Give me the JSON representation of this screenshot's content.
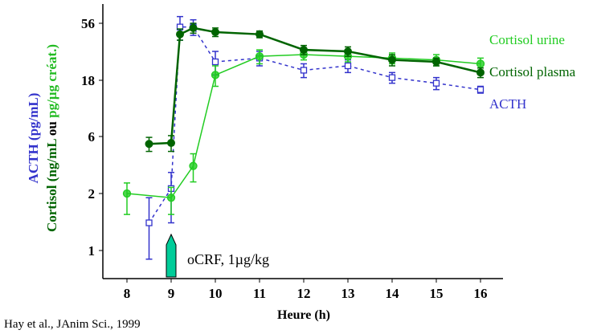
{
  "chart_data": {
    "type": "line",
    "title": "",
    "xlabel": "Heure (h)",
    "ylabel_acth": "ACTH (pg/mL)",
    "ylabel_cortisol_parts": [
      {
        "text": "Cortisol (ng/mL ",
        "color": "#006400"
      },
      {
        "text": "ou ",
        "color": "#000000"
      },
      {
        "text": "pg/µg créat.)",
        "color": "#22bb22"
      }
    ],
    "y_scale": "log (ticks equally spaced)",
    "y_ticks": [
      1,
      2,
      6,
      18,
      56
    ],
    "x_ticks": [
      8,
      9,
      10,
      11,
      12,
      13,
      14,
      15,
      16
    ],
    "xlim": [
      7.45,
      16.5
    ],
    "grid": false,
    "legend_placement": "right, inline labels",
    "series": [
      {
        "name": "Cortisol urine",
        "color": "#22cc22",
        "line": "solid",
        "marker": "circle-open",
        "x": [
          8,
          9,
          9.5,
          10,
          11,
          12,
          13,
          14,
          15,
          16
        ],
        "y": [
          2.0,
          1.9,
          3.4,
          20,
          29,
          30,
          29,
          28,
          27,
          25
        ],
        "err": [
          0.45,
          0.35,
          0.9,
          4,
          4,
          3,
          3,
          3,
          3,
          3
        ]
      },
      {
        "name": "Cortisol plasma",
        "color": "#006400",
        "line": "solid-thick",
        "marker": "circle-filled",
        "x": [
          8.5,
          9,
          9.2,
          9.5,
          10,
          11,
          12,
          13,
          14,
          15,
          16
        ],
        "y": [
          5.2,
          5.3,
          45,
          51,
          47,
          45,
          33,
          32,
          27,
          26,
          21
        ],
        "err": [
          0.7,
          0.8,
          5,
          5,
          4,
          3,
          3,
          3,
          3,
          2,
          2
        ]
      },
      {
        "name": "ACTH",
        "color": "#3333cc",
        "line": "dashed",
        "marker": "square-open",
        "x": [
          8.5,
          9,
          9.2,
          9.5,
          10,
          11,
          12,
          13,
          14,
          15,
          16
        ],
        "y": [
          1.4,
          2.2,
          52,
          52,
          26,
          28,
          22,
          24,
          19,
          17,
          15
        ],
        "err": [
          0.5,
          0.8,
          12,
          8,
          6,
          4,
          3,
          3,
          2,
          2,
          1
        ]
      }
    ],
    "annotations": [
      {
        "text": "oCRF, 1µg/kg",
        "x": 9,
        "type": "arrow-up",
        "color": "#00cc99"
      }
    ],
    "source_note": "Hay et al., JAnim Sci., 1999"
  }
}
